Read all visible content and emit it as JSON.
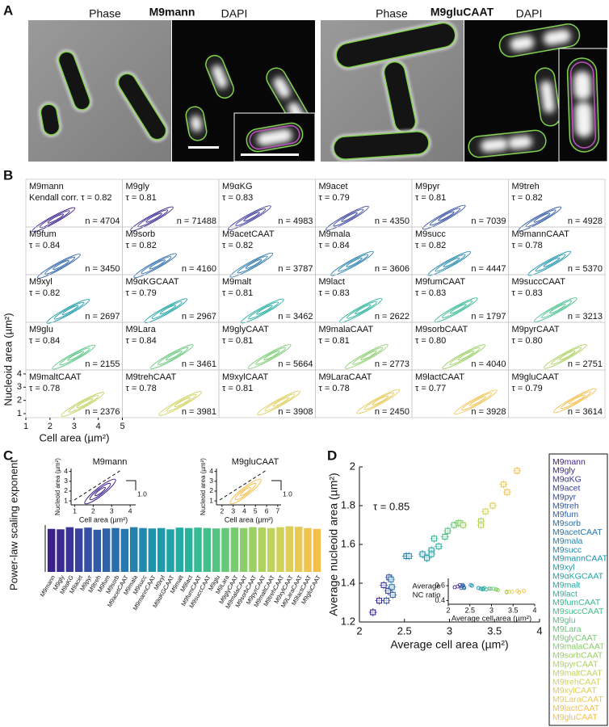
{
  "panel_a": {
    "label": "A",
    "groups": [
      {
        "title": "M9mann",
        "phase": "Phase",
        "dapi": "DAPI"
      },
      {
        "title": "M9gluCAAT",
        "phase": "Phase",
        "dapi": "DAPI"
      }
    ]
  },
  "chart_data": [
    {
      "type": "contour_grid",
      "label": "B",
      "categories": [
        "M9mann",
        "M9gly",
        "M9αKG",
        "M9acet",
        "M9pyr",
        "M9treh",
        "M9fum",
        "M9sorb",
        "M9acetCAAT",
        "M9mala",
        "M9succ",
        "M9mannCAAT",
        "M9xyl",
        "M9αKGCAAT",
        "M9malt",
        "M9lact",
        "M9fumCAAT",
        "M9succCAAT",
        "M9glu",
        "M9Lara",
        "M9glyCAAT",
        "M9malaCAAT",
        "M9sorbCAAT",
        "M9pyrCAAT",
        "M9maltCAAT",
        "M9trehCAAT",
        "M9xylCAAT",
        "M9LaraCAAT",
        "M9lactCAAT",
        "M9gluCAAT"
      ],
      "tau_labels": [
        "Kendall corr. τ = 0.82",
        "τ = 0.81",
        "τ = 0.83",
        "τ = 0.79",
        "τ = 0.81",
        "τ = 0.82",
        "τ = 0.84",
        "τ = 0.82",
        "τ = 0.82",
        "τ = 0.84",
        "τ = 0.82",
        "τ = 0.78",
        "τ = 0.82",
        "τ = 0.79",
        "τ = 0.81",
        "τ = 0.83",
        "τ = 0.83",
        "τ = 0.83",
        "τ = 0.84",
        "τ = 0.84",
        "τ = 0.81",
        "τ = 0.81",
        "τ = 0.80",
        "τ = 0.80",
        "τ = 0.78",
        "τ = 0.78",
        "τ = 0.81",
        "τ = 0.78",
        "τ = 0.77",
        "τ = 0.79"
      ],
      "n_labels": [
        "n = 4704",
        "n = 71488",
        "n = 4983",
        "n = 4350",
        "n = 7039",
        "n = 4928",
        "n = 3450",
        "n = 4160",
        "n = 3787",
        "n = 3606",
        "n = 4447",
        "n = 5370",
        "n = 2697",
        "n = 2967",
        "n = 3462",
        "n = 2622",
        "n = 1797",
        "n = 3213",
        "n = 2155",
        "n = 3461",
        "n = 5664",
        "n = 2773",
        "n = 4040",
        "n = 2751",
        "n = 2376",
        "n = 3981",
        "n = 3908",
        "n = 2450",
        "n = 3928",
        "n = 3614"
      ],
      "colors": [
        "#3b1f8c",
        "#3b2a92",
        "#3a3698",
        "#37439e",
        "#344fa3",
        "#3159a6",
        "#2e63a9",
        "#2b6dab",
        "#2877ad",
        "#2580ae",
        "#2289ae",
        "#1f92ad",
        "#1d9bab",
        "#1ea4a7",
        "#22aca2",
        "#2ab39b",
        "#36ba93",
        "#44bf8a",
        "#54c481",
        "#65c878",
        "#77cb70",
        "#89ce69",
        "#9bd064",
        "#add260",
        "#bfd35d",
        "#d0d25b",
        "#ddce58",
        "#e8c955",
        "#f0c451",
        "#f5bf4c"
      ],
      "xlabel": "Cell area (µm²)",
      "ylabel": "Nucleoid area (µm²)",
      "xlim": [
        1,
        5
      ],
      "ylim": [
        0.7,
        4.3
      ],
      "xticks": [
        1,
        2,
        3,
        4,
        5
      ],
      "yticks": [
        1,
        2,
        3,
        4
      ]
    },
    {
      "type": "bar",
      "label": "C",
      "ylabel": "Power-law scaling exponent",
      "categories": [
        "M9mann",
        "M9gly",
        "M9αKG",
        "M9acet",
        "M9pyr",
        "M9treh",
        "M9fum",
        "M9sorb",
        "M9acetCAAT",
        "M9mala",
        "M9succ",
        "M9mannCAAT",
        "M9xyl",
        "M9αKGCAAT",
        "M9malt",
        "M9lact",
        "M9fumCAAT",
        "M9succCAAT",
        "M9glu",
        "M9Lara",
        "M9glyCAAT",
        "M9malaCAAT",
        "M9sorbCAAT",
        "M9pyrCAAT",
        "M9maltCAAT",
        "M9trehCAAT",
        "M9xylCAAT",
        "M9LaraCAAT",
        "M9lactCAAT",
        "M9gluCAAT"
      ],
      "values": [
        1.01,
        1.0,
        1.05,
        1.02,
        1.04,
        0.99,
        1.02,
        1.03,
        1.01,
        1.05,
        1.03,
        1.02,
        1.03,
        1.0,
        1.04,
        1.03,
        1.04,
        1.03,
        1.02,
        1.03,
        1.04,
        1.03,
        1.05,
        1.04,
        1.03,
        1.05,
        1.07,
        1.06,
        1.03,
        1.01
      ],
      "colors": [
        "#3b1f8c",
        "#3b2a92",
        "#3a3698",
        "#37439e",
        "#344fa3",
        "#3159a6",
        "#2e63a9",
        "#2b6dab",
        "#2877ad",
        "#2580ae",
        "#2289ae",
        "#1f92ad",
        "#1d9bab",
        "#1ea4a7",
        "#22aca2",
        "#2ab39b",
        "#36ba93",
        "#44bf8a",
        "#54c481",
        "#65c878",
        "#77cb70",
        "#89ce69",
        "#9bd064",
        "#add260",
        "#bfd35d",
        "#d0d25b",
        "#ddce58",
        "#e8c955",
        "#f0c451",
        "#f5bf4c"
      ],
      "ylim": [
        0,
        1.1
      ],
      "insets": [
        {
          "title": "M9mann",
          "xlabel": "Cell area (µm²)",
          "ylabel": "Nucleoid area (µm²)",
          "xlim": [
            0.8,
            4.3
          ],
          "ylim": [
            0.6,
            4.3
          ],
          "xticks": [
            1,
            2,
            3,
            4
          ],
          "yticks": [
            1,
            2,
            3,
            4
          ],
          "slope_label": "1.0",
          "color": "#3b1f8c"
        },
        {
          "title": "M9gluCAAT",
          "xlabel": "Cell area (µm²)",
          "ylabel": "Nucleoid area (µm²)",
          "xlim": [
            1.5,
            7.3
          ],
          "ylim": [
            0.6,
            4.3
          ],
          "xticks": [
            2,
            3,
            4,
            5,
            6,
            7
          ],
          "yticks": [
            1,
            2,
            3,
            4
          ],
          "slope_label": "1.0",
          "color": "#f5bf4c"
        }
      ]
    },
    {
      "type": "scatter",
      "label": "D",
      "xlabel": "Average cell area (µm²)",
      "ylabel": "Average nucleoid area (µm²)",
      "annotation": "τ = 0.85",
      "categories": [
        "M9mann",
        "M9gly",
        "M9αKG",
        "M9acet",
        "M9pyr",
        "M9treh",
        "M9fum",
        "M9sorb",
        "M9acetCAAT",
        "M9mala",
        "M9succ",
        "M9mannCAAT",
        "M9xyl",
        "M9αKGCAAT",
        "M9malt",
        "M9lact",
        "M9fumCAAT",
        "M9succCAAT",
        "M9glu",
        "M9Lara",
        "M9glyCAAT",
        "M9malaCAAT",
        "M9sorbCAAT",
        "M9pyrCAAT",
        "M9maltCAAT",
        "M9trehCAAT",
        "M9xylCAAT",
        "M9LaraCAAT",
        "M9lactCAAT",
        "M9gluCAAT"
      ],
      "colors": [
        "#3b1f8c",
        "#3b2a92",
        "#3a3698",
        "#37439e",
        "#344fa3",
        "#3159a6",
        "#2e63a9",
        "#2b6dab",
        "#2877ad",
        "#2580ae",
        "#2289ae",
        "#1f92ad",
        "#1d9bab",
        "#1ea4a7",
        "#22aca2",
        "#2ab39b",
        "#36ba93",
        "#44bf8a",
        "#54c481",
        "#65c878",
        "#77cb70",
        "#89ce69",
        "#9bd064",
        "#add260",
        "#bfd35d",
        "#d0d25b",
        "#ddce58",
        "#e8c955",
        "#f0c451",
        "#f5bf4c"
      ],
      "x": [
        2.15,
        2.22,
        2.27,
        2.32,
        2.33,
        2.3,
        2.37,
        2.36,
        2.35,
        2.52,
        2.55,
        2.7,
        2.75,
        2.8,
        2.8,
        2.88,
        2.83,
        2.95,
        2.98,
        3.05,
        3.1,
        3.12,
        3.15,
        3.35,
        3.35,
        3.4,
        3.48,
        3.6,
        3.64,
        3.75
      ],
      "values": [
        1.25,
        1.31,
        1.39,
        1.36,
        1.43,
        1.31,
        1.34,
        1.38,
        1.42,
        1.54,
        1.54,
        1.55,
        1.53,
        1.57,
        1.55,
        1.59,
        1.63,
        1.64,
        1.67,
        1.7,
        1.71,
        1.71,
        1.7,
        1.72,
        1.7,
        1.77,
        1.8,
        1.91,
        1.87,
        1.98
      ],
      "xlim": [
        2,
        4
      ],
      "ylim": [
        1.2,
        2
      ],
      "xticks": [
        2,
        2.5,
        3,
        3.5,
        4
      ],
      "yticks": [
        1.2,
        1.4,
        1.6,
        1.8,
        2
      ],
      "legend": "right",
      "inset": {
        "xlabel": "Average cell area (µm²)",
        "ylabel": [
          "Average",
          "NC ratio"
        ],
        "values": [
          0.58,
          0.59,
          0.61,
          0.59,
          0.61,
          0.57,
          0.57,
          0.58,
          0.6,
          0.61,
          0.6,
          0.57,
          0.56,
          0.56,
          0.55,
          0.55,
          0.57,
          0.56,
          0.56,
          0.56,
          0.55,
          0.55,
          0.54,
          0.52,
          0.51,
          0.52,
          0.52,
          0.53,
          0.51,
          0.53
        ],
        "xlim": [
          2,
          4
        ],
        "ylim": [
          0.35,
          0.7
        ],
        "xticks": [
          2,
          2.5,
          3,
          3.5,
          4
        ],
        "yticks": [
          0.4,
          0.6
        ]
      }
    }
  ]
}
